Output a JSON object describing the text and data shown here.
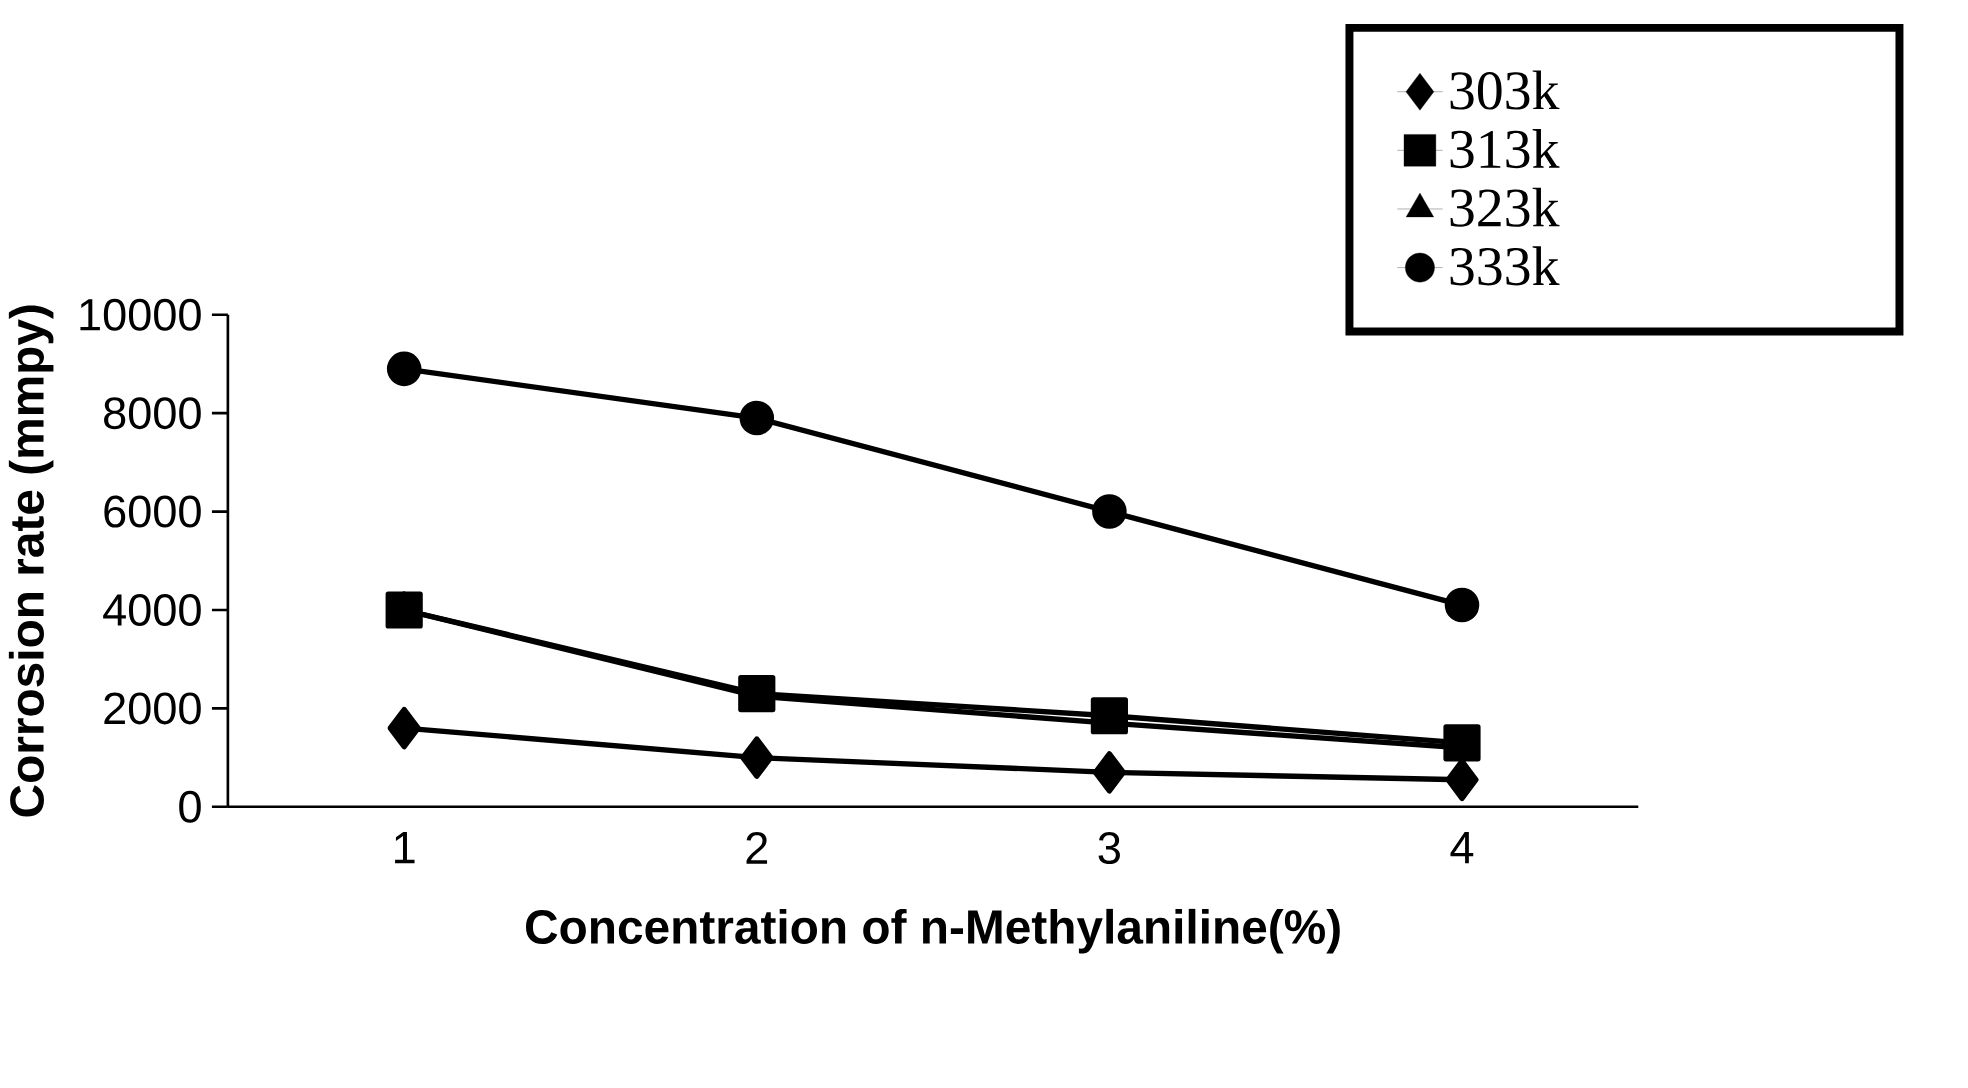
{
  "chart_data": {
    "type": "line",
    "xlabel": "Concentration of n-Methylaniline(%)",
    "ylabel": "Corrosion rate (mmpy)",
    "categories": [
      "1",
      "2",
      "3",
      "4"
    ],
    "series": [
      {
        "name": "303k",
        "color": "#000000",
        "marker": "diamond",
        "values": [
          1600,
          1000,
          700,
          550
        ]
      },
      {
        "name": "313k",
        "color": "#000000",
        "marker": "square",
        "values": [
          4000,
          2300,
          1850,
          1300
        ]
      },
      {
        "name": "323k",
        "color": "#000000",
        "marker": "triangle",
        "values": [
          4000,
          2250,
          1700,
          1200
        ]
      },
      {
        "name": "333k",
        "color": "#000000",
        "marker": "circle",
        "values": [
          8900,
          7900,
          6000,
          4100
        ]
      }
    ],
    "ylim": [
      0,
      10000
    ],
    "yticks": [
      0,
      2000,
      4000,
      6000,
      8000,
      10000
    ],
    "grid": false,
    "legend": "top right"
  }
}
